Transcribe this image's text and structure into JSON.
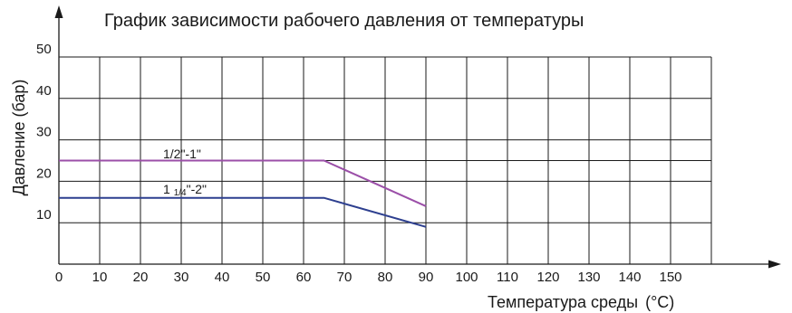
{
  "chart_data": {
    "type": "line",
    "title": "График зависимости рабочего давления от температуры",
    "xlabel": "Температура среды",
    "xlabel_unit": "(°C)",
    "ylabel": "Давление (бар)",
    "xlim": [
      0,
      160
    ],
    "ylim": [
      0,
      50
    ],
    "x_ticks": [
      0,
      10,
      20,
      30,
      40,
      50,
      60,
      70,
      80,
      90,
      100,
      110,
      120,
      130,
      140,
      150
    ],
    "y_ticks": [
      10,
      20,
      30,
      40,
      50
    ],
    "y_extra_gridlines": [
      25
    ],
    "grid": true,
    "series": [
      {
        "name": "1/2\"-1\"",
        "label_main": "1/2\"-1\"",
        "color": "#9b4fa8",
        "points": [
          [
            0,
            25
          ],
          [
            65,
            25
          ],
          [
            90,
            14
          ]
        ]
      },
      {
        "name": "1 1/4\"-2\"",
        "label_main": "1 ",
        "label_small": "1/4",
        "label_tail": "\"-2\"",
        "color": "#2d3f8f",
        "points": [
          [
            0,
            16
          ],
          [
            65,
            16
          ],
          [
            90,
            9
          ]
        ]
      }
    ]
  }
}
